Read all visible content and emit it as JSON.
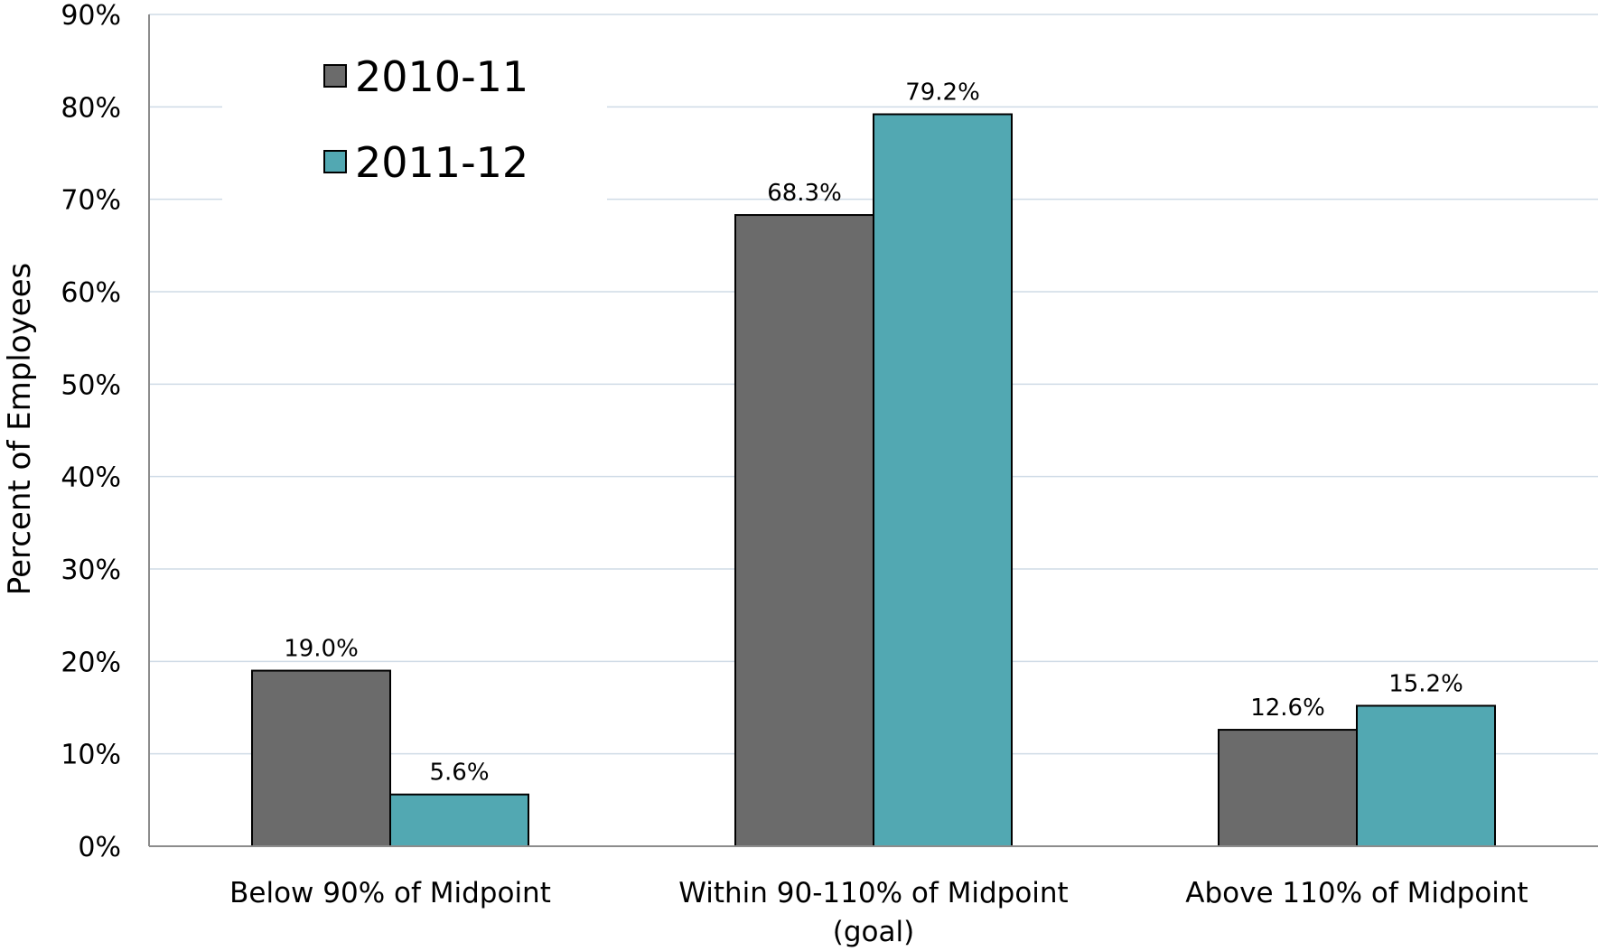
{
  "chart_data": {
    "type": "bar",
    "categories": [
      [
        "Below 90% of Midpoint"
      ],
      [
        "Within 90-110% of Midpoint",
        "(goal)"
      ],
      [
        "Above 110% of Midpoint"
      ]
    ],
    "series": [
      {
        "name": "2010-11",
        "values": [
          19.0,
          68.3,
          12.6
        ],
        "labels": [
          "19.0%",
          "68.3%",
          "12.6%"
        ],
        "color": "#6b6b6b"
      },
      {
        "name": "2011-12",
        "values": [
          5.6,
          79.2,
          15.2
        ],
        "labels": [
          "5.6%",
          "79.2%",
          "15.2%"
        ],
        "color": "#52a8b2"
      }
    ],
    "ylabel": "Percent of Employees",
    "ylim": [
      0,
      90
    ],
    "yticks": [
      0,
      10,
      20,
      30,
      40,
      50,
      60,
      70,
      80,
      90
    ],
    "ytick_labels": [
      "0%",
      "10%",
      "20%",
      "30%",
      "40%",
      "50%",
      "60%",
      "70%",
      "80%",
      "90%"
    ],
    "grid": true,
    "gridline_color": "#cfdbe6",
    "legend_position": "top-left"
  }
}
